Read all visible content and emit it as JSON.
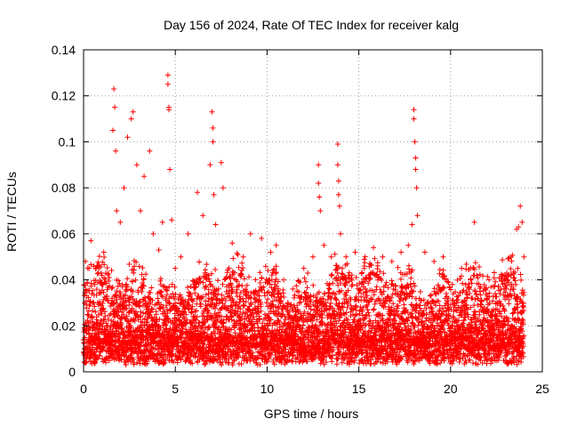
{
  "chart_data": {
    "type": "scatter",
    "title": "Day 156 of 2024, Rate Of TEC Index for receiver kalg",
    "xlabel": "GPS time / hours",
    "ylabel": "ROTI / TECUs",
    "xlim": [
      0,
      25
    ],
    "ylim": [
      0,
      0.14
    ],
    "xticks": [
      0,
      5,
      10,
      15,
      20,
      25
    ],
    "xtick_labels": [
      "0",
      "5",
      "10",
      "15",
      "20",
      "25"
    ],
    "yticks": [
      0,
      0.02,
      0.04,
      0.06,
      0.08,
      0.1,
      0.12,
      0.14
    ],
    "ytick_labels": [
      "0",
      "0.02",
      "0.04",
      "0.06",
      "0.08",
      "0.1",
      "0.12",
      "0.14"
    ],
    "grid": true,
    "marker": "+",
    "color": "#ff0000",
    "data_span_hours": [
      0,
      24
    ],
    "series": [
      {
        "name": "ROTI",
        "x": [
          0.1,
          0.2,
          0.3,
          0.4,
          0.6,
          1.1,
          1.4,
          1.6,
          1.65,
          1.7,
          1.75,
          1.8,
          2.0,
          2.2,
          2.4,
          2.6,
          2.7,
          2.9,
          3.1,
          3.3,
          3.6,
          3.8,
          4.1,
          4.3,
          4.6,
          4.6,
          4.65,
          4.65,
          4.7,
          4.8,
          5.0,
          5.3,
          5.7,
          6.2,
          6.5,
          6.9,
          7.0,
          7.05,
          7.05,
          7.1,
          7.2,
          7.5,
          7.6,
          8.1,
          8.7,
          9.1,
          9.7,
          10.2,
          10.5,
          10.9,
          11.4,
          12.0,
          12.5,
          12.8,
          12.8,
          12.85,
          12.9,
          13.1,
          13.5,
          13.85,
          13.85,
          13.9,
          13.9,
          13.95,
          14.0,
          14.3,
          14.8,
          15.3,
          15.8,
          16.3,
          16.8,
          17.3,
          17.7,
          17.9,
          18.0,
          18.0,
          18.05,
          18.1,
          18.1,
          18.15,
          18.2,
          18.6,
          19.1,
          19.6,
          20.1,
          20.6,
          21.1,
          21.3,
          21.6,
          22.1,
          22.6,
          23.1,
          23.6,
          23.7,
          23.8,
          23.9,
          24.0
        ],
        "y": [
          0.048,
          0.039,
          0.045,
          0.057,
          0.038,
          0.052,
          0.041,
          0.105,
          0.123,
          0.115,
          0.096,
          0.07,
          0.065,
          0.08,
          0.102,
          0.11,
          0.113,
          0.09,
          0.07,
          0.085,
          0.096,
          0.06,
          0.053,
          0.065,
          0.129,
          0.125,
          0.115,
          0.114,
          0.088,
          0.066,
          0.045,
          0.05,
          0.06,
          0.078,
          0.068,
          0.09,
          0.113,
          0.106,
          0.1,
          0.077,
          0.064,
          0.091,
          0.08,
          0.056,
          0.05,
          0.06,
          0.058,
          0.052,
          0.055,
          0.04,
          0.036,
          0.045,
          0.05,
          0.09,
          0.082,
          0.076,
          0.07,
          0.055,
          0.05,
          0.099,
          0.09,
          0.083,
          0.077,
          0.072,
          0.06,
          0.05,
          0.052,
          0.046,
          0.054,
          0.05,
          0.048,
          0.052,
          0.055,
          0.064,
          0.114,
          0.11,
          0.1,
          0.093,
          0.088,
          0.08,
          0.068,
          0.052,
          0.048,
          0.05,
          0.038,
          0.045,
          0.04,
          0.065,
          0.035,
          0.04,
          0.037,
          0.04,
          0.062,
          0.063,
          0.072,
          0.065,
          0.05
        ]
      }
    ],
    "noise_model": {
      "description": "dense background of ROTI samples across 0-24 h",
      "sample_interval_hours": 0.004,
      "baseline_typical": 0.012,
      "spread_typical": 0.03
    }
  }
}
